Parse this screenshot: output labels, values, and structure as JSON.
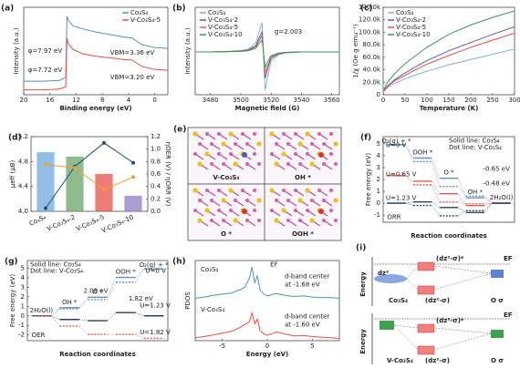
{
  "chart_data": [
    {
      "type": "line",
      "panel": "(a)",
      "xlabel": "Binding energy (eV)",
      "ylabel": "Intensity (a.u.)",
      "x": [
        20,
        17,
        14.5,
        13.6,
        13.4,
        13.2,
        12.5,
        11,
        9,
        7,
        5,
        3.4,
        2,
        0,
        -2
      ],
      "xlim": [
        20,
        -2
      ],
      "xticks": [
        20,
        16,
        12,
        8,
        4,
        0
      ],
      "ylim": [
        0,
        10.5
      ],
      "legend": "upper right",
      "series": [
        {
          "name": "Co₃S₄",
          "color": "#5b8fb9",
          "values": [
            1.5,
            1.5,
            1.6,
            2,
            9.8,
            9.3,
            8.6,
            8.2,
            7.8,
            7.5,
            7.2,
            7.0,
            6.2,
            5.8,
            5.7
          ]
        },
        {
          "name": "V-Co₃S₄-5",
          "color": "#e8524a",
          "values": [
            0.4,
            0.4,
            0.5,
            0.8,
            7.0,
            6.3,
            5.6,
            5.0,
            4.7,
            4.5,
            4.3,
            4.2,
            3.4,
            3.0,
            2.9
          ]
        }
      ],
      "annotations": [
        {
          "text": "φ=7.97 eV",
          "color": "#5b8fb9"
        },
        {
          "text": "φ=7.72 eV",
          "color": "#e8524a"
        },
        {
          "text": "VBM=3.36 eV",
          "color": "#5b8fb9"
        },
        {
          "text": "VBM=3.20 eV",
          "color": "#e8524a"
        }
      ]
    },
    {
      "type": "line",
      "panel": "(b)",
      "xlabel": "Magnetic field (G)",
      "ylabel": "Intensity (a.u.)",
      "x": [
        3470,
        3480,
        3490,
        3500,
        3505,
        3510,
        3512,
        3514,
        3515,
        3516,
        3518,
        3520,
        3525,
        3530,
        3540,
        3550,
        3565
      ],
      "xlim": [
        3470,
        3565
      ],
      "xticks": [
        3480,
        3500,
        3520,
        3540,
        3560
      ],
      "ylim": [
        -4.5,
        4.5
      ],
      "legend": "upper left",
      "series": [
        {
          "name": "Co₃S₄",
          "color": "#7fb3d5",
          "values": [
            0,
            0,
            0.05,
            0.15,
            0.3,
            1.0,
            2.2,
            3.2,
            0,
            -4.2,
            -2.5,
            -1.0,
            -0.3,
            -0.1,
            0,
            0,
            0
          ]
        },
        {
          "name": "V-Co₃S₄-2",
          "color": "#5a5fa8",
          "values": [
            0,
            0,
            0.04,
            0.1,
            0.2,
            0.7,
            1.5,
            2.2,
            0,
            -2.9,
            -1.7,
            -0.7,
            -0.2,
            -0.07,
            0,
            0,
            0
          ]
        },
        {
          "name": "V-Co₃S₄-5",
          "color": "#e8524a",
          "values": [
            0,
            0,
            0.03,
            0.08,
            0.16,
            0.55,
            1.2,
            1.8,
            0,
            -2.3,
            -1.4,
            -0.55,
            -0.16,
            -0.05,
            0,
            0,
            0
          ]
        },
        {
          "name": "V-Co₃S₄-10",
          "color": "#3a9a5a",
          "values": [
            0,
            0,
            0.02,
            0.06,
            0.12,
            0.4,
            0.9,
            1.3,
            0,
            -1.7,
            -1.0,
            -0.4,
            -0.12,
            -0.04,
            0,
            0,
            0
          ]
        }
      ],
      "annotations": [
        {
          "text": "g=2.003",
          "color": "#222222"
        }
      ]
    },
    {
      "type": "line",
      "panel": "(c)",
      "xlabel": "Temperature (K)",
      "ylabel": "1/χ (Oe g emu⁻¹)",
      "x": [
        2,
        10,
        25,
        50,
        75,
        100,
        150,
        200,
        250,
        300
      ],
      "xlim": [
        0,
        300
      ],
      "xticks": [
        0,
        50,
        100,
        150,
        200,
        250,
        300
      ],
      "ylim": [
        0,
        140000
      ],
      "yticks": [
        0,
        {
          "value": 20000,
          "label": "20.0k"
        },
        {
          "value": 40000,
          "label": "40.0k"
        },
        {
          "value": 60000,
          "label": "60.0k"
        },
        {
          "value": 80000,
          "label": "80.0k"
        },
        {
          "value": 100000,
          "label": "100.0k"
        },
        {
          "value": 120000,
          "label": "120.0k"
        },
        {
          "value": 140000,
          "label": "140.0k"
        }
      ],
      "legend": "upper left",
      "series": [
        {
          "name": "Co₃S₄",
          "color": "#7fb3d5",
          "values": [
            3000,
            9000,
            16000,
            24000,
            31000,
            37000,
            48000,
            57000,
            66000,
            75000
          ]
        },
        {
          "name": "V-Co₃S₄-2",
          "color": "#5a5fa8",
          "values": [
            4000,
            12000,
            22000,
            34000,
            45000,
            55000,
            72000,
            86000,
            100000,
            113000
          ]
        },
        {
          "name": "V-Co₃S₄-5",
          "color": "#e8524a",
          "values": [
            3500,
            11000,
            20000,
            30000,
            40000,
            49000,
            64000,
            78000,
            90000,
            102000
          ]
        },
        {
          "name": "V-Co₃S₄-10",
          "color": "#3a9a5a",
          "values": [
            6000,
            18000,
            32000,
            50000,
            64000,
            78000,
            100000,
            116000,
            129000,
            140000
          ]
        }
      ]
    },
    {
      "type": "bar",
      "panel": "(d)",
      "ylabel": "μeff (μB)",
      "y2label": "ηOER (V) / ηORR (V)",
      "categories": [
        "Co₃S₄",
        "V-Co₃S₄-2",
        "V-Co₃S₄-5",
        "V-Co₃S₄-10"
      ],
      "values": [
        4.95,
        4.88,
        4.6,
        4.25
      ],
      "colors": [
        "#6fa8dc",
        "#6aa56a",
        "#e8524a",
        "#8e7cc3"
      ],
      "ylim": [
        4,
        5.2
      ],
      "yticks": [
        {
          "value": 4,
          "label": "4.0"
        },
        4.4,
        4.8,
        5.2
      ],
      "y2lim": [
        0,
        1.2
      ],
      "y2ticks": [
        {
          "value": 0,
          "label": "0.0"
        },
        0.2,
        0.4,
        0.6,
        0.8,
        {
          "value": 1,
          "label": "1.0"
        },
        1.2
      ],
      "series": [
        {
          "color": "#1f4e79",
          "axis": "y2",
          "values": [
            0.05,
            0.72,
            1.1,
            0.78
          ]
        },
        {
          "color": "#f0a030",
          "axis": "y2",
          "values": [
            0.75,
            0.7,
            0.35,
            0.55
          ]
        }
      ]
    },
    {
      "type": "step",
      "panel": "(f)",
      "xlabel": "Reaction coordinates",
      "ylabel": "Free energy (eV)",
      "categories": [
        "O₂(g) + *",
        "OOH *",
        "O *",
        "OH *",
        "2H₂O(l)"
      ],
      "ylim": [
        -1.6,
        5.6
      ],
      "yticks": [
        -1,
        0,
        1,
        2,
        3,
        4,
        5
      ],
      "series": [
        {
          "color": "#6b8fb3",
          "dash": false,
          "values": [
            4.92,
            3.8,
            2.1,
            0.45,
            0
          ]
        },
        {
          "color": "#6b8fb3",
          "dash": true,
          "values": [
            4.92,
            3.5,
            1.4,
            0.6,
            0
          ]
        },
        {
          "color": "#e05a4f",
          "dash": false,
          "values": [
            2.32,
            1.85,
            0.8,
            -0.2,
            0
          ]
        },
        {
          "color": "#e05a4f",
          "dash": true,
          "values": [
            2.32,
            1.55,
            0.1,
            -0.05,
            0
          ]
        },
        {
          "color": "#2d3e5e",
          "dash": false,
          "values": [
            0,
            0.11,
            -0.36,
            -0.78,
            0
          ]
        },
        {
          "color": "#2d3e5e",
          "dash": true,
          "values": [
            0,
            -0.19,
            -1.06,
            -0.63,
            0
          ]
        }
      ],
      "annotations": [
        {
          "text": "U=0 V",
          "color": "#6b8fb3"
        },
        {
          "text": "U=0.65 V",
          "color": "#e05a4f"
        },
        {
          "text": "U=1.23 V",
          "color": "#2d3e5e"
        },
        {
          "text": "-0.65 eV",
          "color": "#e05a4f"
        },
        {
          "text": "-0.48 eV",
          "color": "#222222"
        },
        {
          "text": "Solid line: Co₃S₄",
          "color": "#222222"
        },
        {
          "text": "Dot line: V-Co₃S₄",
          "color": "#222222"
        },
        {
          "text": "ORR",
          "color": "#3a9a5a"
        }
      ]
    },
    {
      "type": "step",
      "panel": "(g)",
      "xlabel": "Reaction coordinates",
      "ylabel": "Free energy (eV)",
      "categories": [
        "2H₂O(l)",
        "OH *",
        "O *",
        "OOH *",
        "O₂(g) + *"
      ],
      "ylim": [
        -2.6,
        5.8
      ],
      "yticks": [
        -2,
        -1,
        0,
        1,
        2,
        3,
        4,
        5
      ],
      "series": [
        {
          "color": "#6b8fb3",
          "dash": false,
          "values": [
            0,
            0.85,
            1.95,
            4.03,
            4.92
          ]
        },
        {
          "color": "#6b8fb3",
          "dash": true,
          "values": [
            0,
            0.75,
            1.7,
            3.52,
            4.92
          ]
        },
        {
          "color": "#2d3e5e",
          "dash": false,
          "values": [
            0,
            -0.38,
            -0.51,
            0.34,
            0
          ]
        },
        {
          "color": "#e05a4f",
          "dash": true,
          "values": [
            0,
            -1.07,
            -1.94,
            -1.94,
            -2.36
          ]
        }
      ],
      "annotations": [
        {
          "text": "2.08 eV",
          "color": "#222222"
        },
        {
          "text": "1.82 eV",
          "color": "#e05a4f"
        },
        {
          "text": "U=0 V",
          "color": "#6b8fb3"
        },
        {
          "text": "U=1.23 V",
          "color": "#2d3e5e"
        },
        {
          "text": "U=1.82 V",
          "color": "#e05a4f"
        },
        {
          "text": "Solid line: Co₃S₄",
          "color": "#222222"
        },
        {
          "text": "Dot line: V-Co₃S₄",
          "color": "#222222"
        },
        {
          "text": "OER",
          "color": "#5a5fa8"
        }
      ]
    },
    {
      "type": "line",
      "split": true,
      "panel": "(h)",
      "xlabel": "Energy (eV)",
      "ylabel": "PDOS",
      "x": [
        -8,
        -7,
        -6,
        -5,
        -4,
        -3,
        -2.5,
        -2,
        -1.7,
        -1.4,
        -1.1,
        -0.8,
        -0.4,
        0,
        1,
        2,
        3,
        4,
        5,
        6,
        7,
        8
      ],
      "xlim": [
        -8,
        8
      ],
      "xticks": [
        -5,
        0,
        5
      ],
      "ylim": [
        0,
        6
      ],
      "series": [
        {
          "name": "Co₃S₄",
          "color": "#4a9a9a",
          "values": [
            0.1,
            0.3,
            0.6,
            0.8,
            1.0,
            1.6,
            2.0,
            3.5,
            5.5,
            2.8,
            4.0,
            1.5,
            0.8,
            0.5,
            0.9,
            0.6,
            0.4,
            0.5,
            0.3,
            0.2,
            0.2,
            0.1
          ]
        },
        {
          "name": "V-Co₃S₄",
          "color": "#e8524a",
          "values": [
            0.2,
            0.4,
            0.7,
            1.0,
            1.3,
            2.0,
            2.5,
            3.0,
            4.5,
            2.6,
            3.4,
            1.4,
            0.9,
            0.6,
            1.2,
            0.8,
            0.5,
            0.6,
            0.4,
            0.3,
            0.2,
            0.1
          ]
        }
      ],
      "annotations": [
        {
          "text": "EF",
          "color": "#222222"
        },
        {
          "text": "d-band center",
          "color": "#222222"
        },
        {
          "text": "at -1.68 eV",
          "color": "#222222"
        },
        {
          "text": "d-band center",
          "color": "#222222"
        },
        {
          "text": "at -1.60 eV",
          "color": "#222222"
        }
      ]
    }
  ],
  "diagrams": {
    "e": {
      "panel": "(e)",
      "labels": [
        "V-Co₃S₄",
        "OH *",
        "O *",
        "OOH *"
      ]
    },
    "i": {
      "panel": "(i)",
      "labels": [
        "(dz²-σ)*",
        "EF",
        "dz²",
        "(dz²-σ)",
        "Co₃S₄",
        "O σ",
        "Energy",
        "(dz²-σ)*",
        "EF",
        "(dz²-σ)",
        "V-Co₃S₄",
        "O σ",
        "Energy"
      ]
    }
  }
}
